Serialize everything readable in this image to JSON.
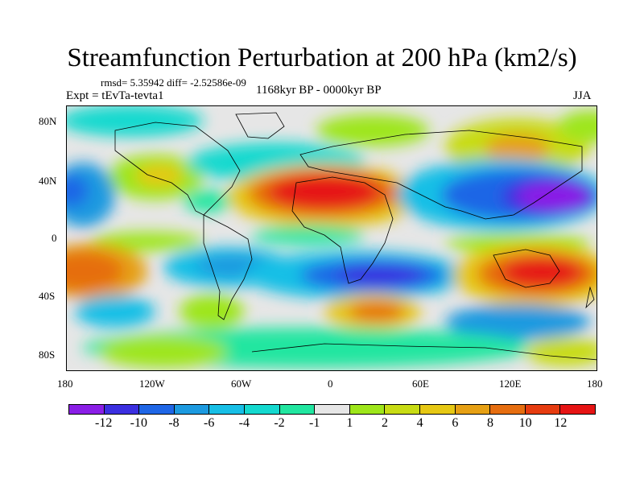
{
  "title": "Streamfunction Perturbation at 200 hPa (km2/s)",
  "stats": "rmsd= 5.35942 diff= -2.52586e-09",
  "expt": "Expt = tEvTa-tevta1",
  "period": "1168kyr BP - 0000kyr BP",
  "season": "JJA",
  "y_axis": {
    "ticks": [
      "80N",
      "40N",
      "0",
      "40S",
      "80S"
    ]
  },
  "x_axis": {
    "ticks": [
      "180",
      "120W",
      "60W",
      "0",
      "60E",
      "120E",
      "180"
    ]
  },
  "colorbar": {
    "labels": [
      "-12",
      "-10",
      "-8",
      "-6",
      "-4",
      "-2",
      "-1",
      "1",
      "2",
      "4",
      "6",
      "8",
      "10",
      "12"
    ],
    "colors": [
      "#8a1ee6",
      "#3b2fe0",
      "#1f66e6",
      "#1c9ae0",
      "#17bfe6",
      "#14d9cf",
      "#21e6a0",
      "#e6e6e6",
      "#9ee61a",
      "#c8dc14",
      "#e6c814",
      "#e6a014",
      "#e66e10",
      "#e63c10",
      "#e61414"
    ]
  },
  "colors": {
    "background": "#ffffff",
    "land_outline": "#000000"
  }
}
